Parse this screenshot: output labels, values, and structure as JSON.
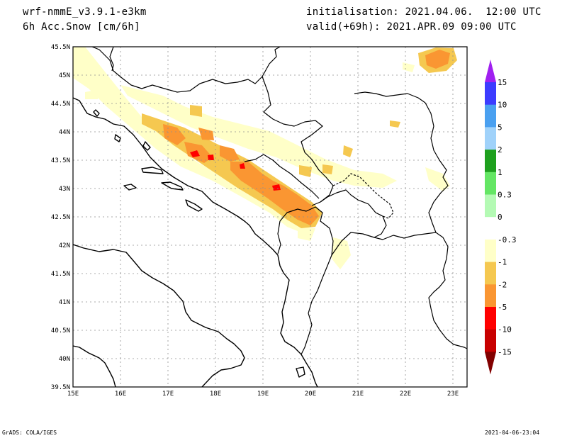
{
  "header": {
    "model": "wrf-nmmE_v3.9.1-e3km",
    "field": "6h Acc.Snow [cm/6h]",
    "init": "initialisation: 2021.04.06.  12:00 UTC",
    "valid": "valid(+69h): 2021.APR.09 09:00 UTC"
  },
  "map": {
    "lon_range": [
      15,
      23.3
    ],
    "lat_range": [
      39.5,
      45.5
    ],
    "lon_labels": [
      "15E",
      "16E",
      "17E",
      "18E",
      "19E",
      "20E",
      "21E",
      "22E",
      "23E"
    ],
    "lat_labels": [
      "39.5N",
      "40N",
      "40.5N",
      "41N",
      "41.5N",
      "42N",
      "42.5N",
      "43N",
      "43.5N",
      "44N",
      "44.5N",
      "45N",
      "45.5N"
    ]
  },
  "colorbar": {
    "labels": [
      "15",
      "10",
      "5",
      "2",
      "1",
      "0.3",
      "0",
      "-0.3",
      "-1",
      "-2",
      "-5",
      "-10",
      "-15"
    ],
    "colors": [
      "#a020f0",
      "#3c3cff",
      "#4aa0f0",
      "#a0d2fa",
      "#1ea01e",
      "#64e664",
      "#b4fab4",
      "#ffffff",
      "#ffffc8",
      "#f5c850",
      "#fa9632",
      "#ff0000",
      "#c80000",
      "#820000"
    ]
  },
  "footer": {
    "left": "GrADS: COLA/IGES",
    "right": "2021-04-06-23:04"
  }
}
